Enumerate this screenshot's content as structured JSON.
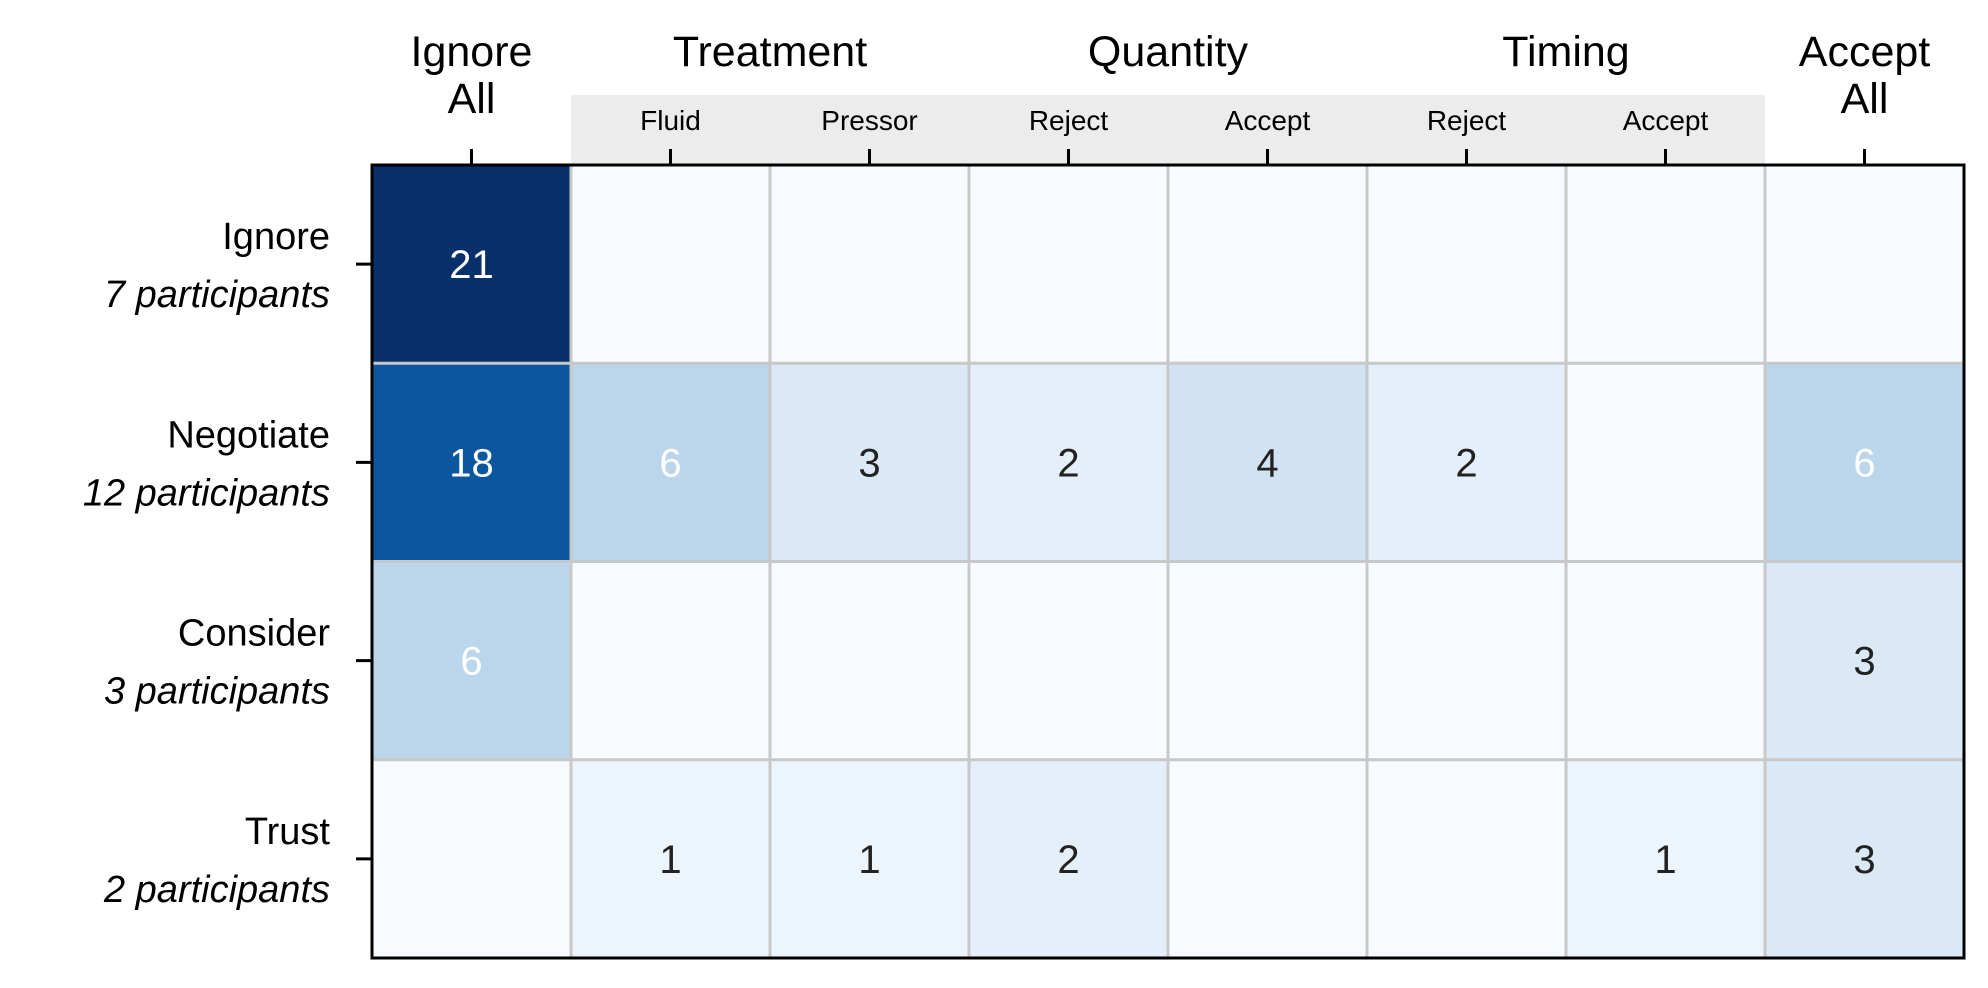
{
  "chart_data": {
    "type": "heatmap",
    "column_headers": [
      {
        "lines": [
          "Ignore",
          "All"
        ]
      },
      {
        "group": "Treatment",
        "subs": [
          "Fluid",
          "Pressor"
        ]
      },
      {
        "group": "Quantity",
        "subs": [
          "Reject",
          "Accept"
        ]
      },
      {
        "group": "Timing",
        "subs": [
          "Reject",
          "Accept"
        ]
      },
      {
        "lines": [
          "Accept",
          "All"
        ]
      }
    ],
    "rows": [
      {
        "name": "Ignore",
        "participants": "7 participants"
      },
      {
        "name": "Negotiate",
        "participants": "12 participants"
      },
      {
        "name": "Consider",
        "participants": "3 participants"
      },
      {
        "name": "Trust",
        "participants": "2 participants"
      }
    ],
    "values": [
      [
        21,
        null,
        null,
        null,
        null,
        null,
        null,
        null
      ],
      [
        18,
        6,
        3,
        2,
        4,
        2,
        null,
        6
      ],
      [
        6,
        null,
        null,
        null,
        null,
        null,
        null,
        3
      ],
      [
        null,
        1,
        1,
        2,
        null,
        null,
        1,
        3
      ]
    ],
    "color_scale": "Blues",
    "vmax": 21,
    "colors": {
      "empty": "#f7fbff",
      "grid": "#c8c8c8",
      "border": "#000000",
      "subheader_band": "#ececec",
      "text_dark": "#222222",
      "text_light": "#ffffff"
    }
  }
}
